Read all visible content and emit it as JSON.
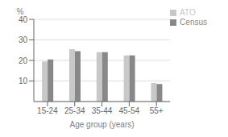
{
  "chart_data": {
    "type": "bar",
    "categories": [
      "15-24",
      "25-34",
      "35-44",
      "45-54",
      "55+"
    ],
    "series": [
      {
        "name": "ATO",
        "color": "#c8c8c8",
        "values": [
          19.5,
          25.5,
          24.0,
          22.5,
          9.0
        ]
      },
      {
        "name": "Census",
        "color": "#888888",
        "values": [
          20.5,
          24.5,
          24.0,
          22.5,
          8.5
        ]
      }
    ],
    "xlabel": "Age group (years)",
    "ylabel": "%",
    "ylim": [
      0,
      40
    ],
    "yticks": [
      10,
      20,
      30,
      40
    ],
    "grid": true,
    "legend": "upper right"
  }
}
